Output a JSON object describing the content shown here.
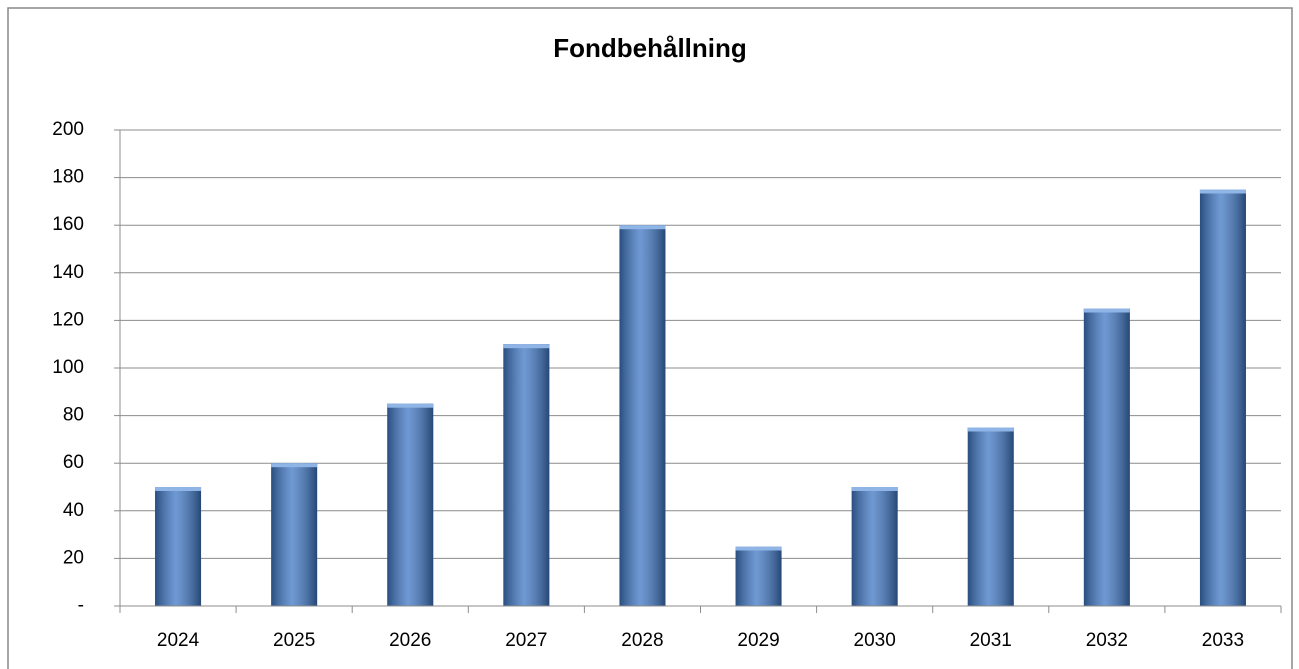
{
  "chart_data": {
    "type": "bar",
    "title": "Fondbehållning",
    "categories": [
      "2024",
      "2025",
      "2026",
      "2027",
      "2028",
      "2029",
      "2030",
      "2031",
      "2032",
      "2033"
    ],
    "values": [
      50,
      60,
      85,
      110,
      160,
      25,
      50,
      75,
      125,
      175
    ],
    "color": "#3f77c4",
    "ylim": [
      0,
      200
    ],
    "yticks": [
      {
        "value": 0,
        "label": "-"
      },
      20,
      40,
      60,
      80,
      100,
      120,
      140,
      160,
      180,
      200
    ],
    "grid": true
  }
}
